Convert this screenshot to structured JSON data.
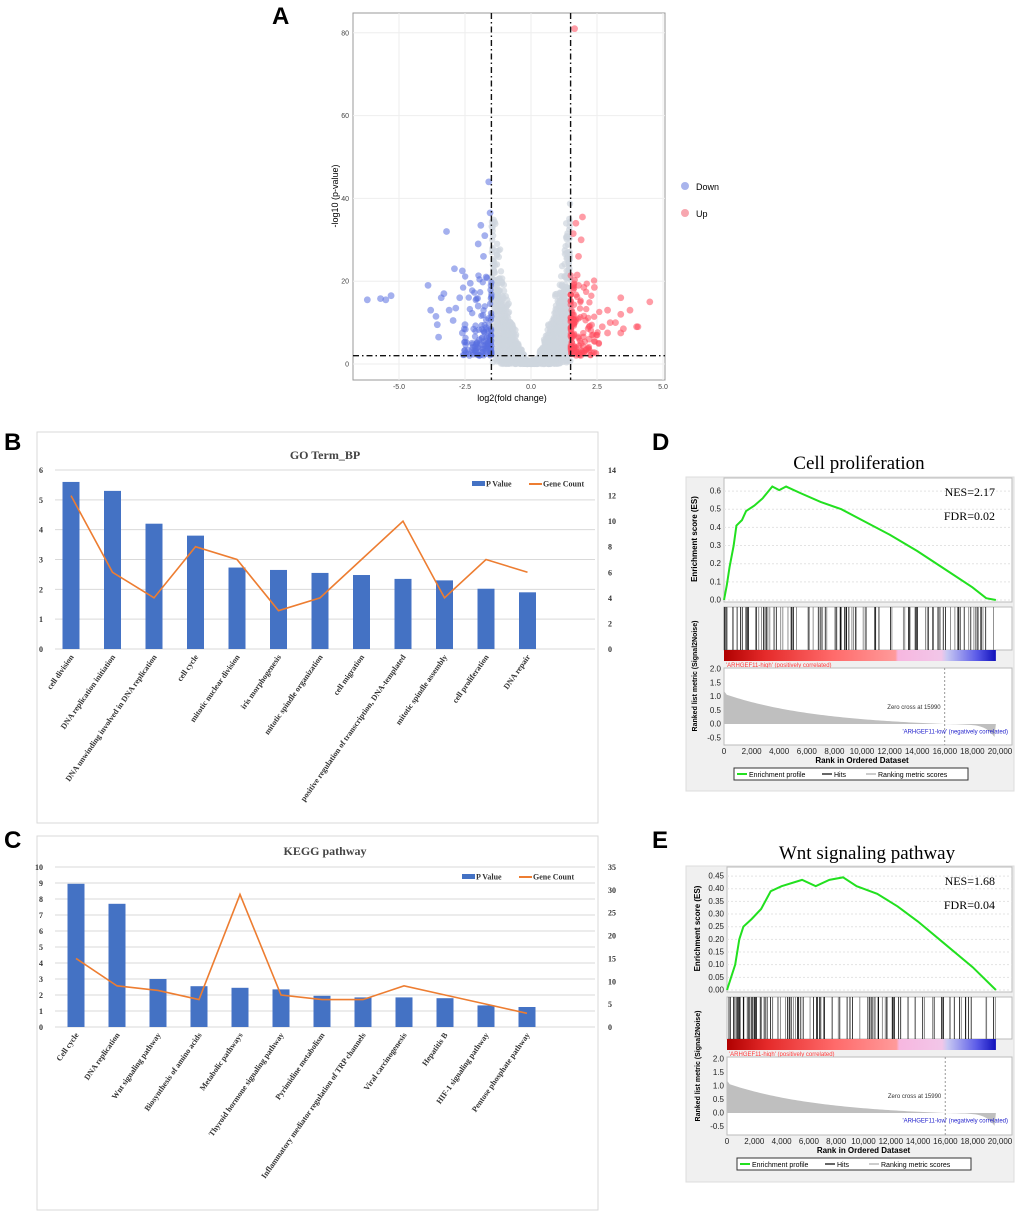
{
  "panels": {
    "A": "A",
    "B": "B",
    "C": "C",
    "D": "D",
    "E": "E"
  },
  "chart_data": [
    {
      "type": "scatter",
      "panel": "A",
      "xlabel": "log2(fold change)",
      "ylabel": "-log10 (p-value)",
      "xlim": [
        -6.5,
        5
      ],
      "ylim": [
        -3,
        85
      ],
      "xticks": [
        "-5.0",
        "-2.5",
        "0.0",
        "2.5",
        "5.0"
      ],
      "yticks": [
        "0",
        "20",
        "40",
        "60",
        "80"
      ],
      "thresholds": {
        "log2fc": [
          -1.5,
          1.5
        ],
        "neg_log10_p": 2
      },
      "grid": true,
      "legend": {
        "position": "right",
        "entries": [
          {
            "name": "Down",
            "color": "#6f82e0"
          },
          {
            "name": "Up",
            "color": "#f26b7a"
          }
        ]
      },
      "colors": {
        "Down": "#5a6fe0",
        "Up": "#ff4a5c",
        "NS": "#cfd6de"
      },
      "series": [
        {
          "name": "Down",
          "points": [
            [
              -6.2,
              15.5
            ],
            [
              -5.7,
              15.8
            ],
            [
              -5.5,
              15.5
            ],
            [
              -5.3,
              16.5
            ],
            [
              -3.9,
              19
            ],
            [
              -3.8,
              13
            ],
            [
              -3.6,
              11.5
            ],
            [
              -3.55,
              9.5
            ],
            [
              -3.5,
              6.5
            ],
            [
              -3.4,
              16
            ],
            [
              -3.3,
              17
            ],
            [
              -3.2,
              32
            ],
            [
              -3.1,
              13
            ],
            [
              -2.95,
              10.5
            ],
            [
              -2.9,
              23
            ],
            [
              -2.85,
              13.5
            ],
            [
              -2.7,
              16
            ],
            [
              -2.6,
              22.5
            ],
            [
              -2.6,
              7.5
            ],
            [
              -2.5,
              9.5
            ],
            [
              -2.3,
              19.5
            ],
            [
              -2.2,
              4
            ],
            [
              -2.1,
              3
            ],
            [
              -2.0,
              29
            ],
            [
              -1.9,
              33.5
            ],
            [
              -1.8,
              26
            ],
            [
              -1.75,
              31
            ],
            [
              -1.6,
              44
            ],
            [
              -1.55,
              36.5
            ],
            [
              -1.7,
              21
            ],
            [
              -2.0,
              14
            ],
            [
              -1.8,
              8
            ],
            [
              -1.6,
              5
            ]
          ]
        },
        {
          "name": "Up",
          "points": [
            [
              1.65,
              81
            ],
            [
              1.6,
              31.5
            ],
            [
              1.7,
              34
            ],
            [
              1.95,
              35.5
            ],
            [
              1.9,
              30
            ],
            [
              1.8,
              26
            ],
            [
              1.75,
              21.5
            ],
            [
              1.8,
              19
            ],
            [
              2.0,
              18.5
            ],
            [
              2.4,
              18.5
            ],
            [
              3.4,
              16
            ],
            [
              4.5,
              15
            ],
            [
              3.75,
              13
            ],
            [
              2.9,
              13
            ],
            [
              3.4,
              12
            ],
            [
              2.7,
              9
            ],
            [
              3.0,
              10
            ],
            [
              3.2,
              10
            ],
            [
              4.0,
              9
            ],
            [
              4.05,
              9
            ],
            [
              3.5,
              8.5
            ],
            [
              3.4,
              7.5
            ],
            [
              2.9,
              7.5
            ],
            [
              2.5,
              7
            ],
            [
              2.2,
              6
            ],
            [
              1.9,
              5
            ],
            [
              1.7,
              4
            ]
          ]
        }
      ]
    },
    {
      "type": "bar",
      "panel": "B",
      "title": "GO Term_BP",
      "categories": [
        "cell division",
        "DNA replication initiation",
        "DNA unwinding involved in DNA replication",
        "cell cycle",
        "mitotic nuclear division",
        "iris morphogenesis",
        "mitotic spindle organization",
        "cell migration",
        "positive regulation of transcription, DNA-templated",
        "mitotic spindle assembly",
        "cell proliferation",
        "DNA repair"
      ],
      "series": [
        {
          "name": "P Value",
          "type": "bar",
          "axis": "left",
          "color": "#4472c4",
          "values": [
            5.6,
            5.3,
            4.2,
            3.8,
            2.73,
            2.65,
            2.55,
            2.48,
            2.35,
            2.3,
            2.02,
            1.9
          ]
        },
        {
          "name": "Gene Count",
          "type": "line",
          "axis": "right",
          "color": "#ed7d31",
          "values": [
            12,
            6,
            4,
            8,
            7,
            3,
            4,
            7,
            10,
            4,
            7,
            6
          ]
        }
      ],
      "ylim": [
        0,
        6
      ],
      "yticks": [
        "0",
        "1",
        "2",
        "3",
        "4",
        "5",
        "6"
      ],
      "y2lim": [
        0,
        14
      ],
      "y2ticks": [
        "0",
        "2",
        "4",
        "6",
        "8",
        "10",
        "12",
        "14"
      ],
      "grid": true,
      "legend": "top-right"
    },
    {
      "type": "bar",
      "panel": "C",
      "title": "KEGG pathway",
      "categories": [
        "Cell cycle",
        "DNA replication",
        "Wnt signaling pathway",
        "Biosynthesis of amino acids",
        "Metabolic pathways",
        "Thyroid hormone signaling pathway",
        "Pyrimidine metabolism",
        "Inflammatory mediator regulation of TRP channels",
        "Viral carcinogenesis",
        "Hepatitis B",
        "HIF-1 signaling pathway",
        "Pentose phosphate pathway"
      ],
      "series": [
        {
          "name": "P Value",
          "type": "bar",
          "axis": "left",
          "color": "#4472c4",
          "values": [
            8.95,
            7.7,
            3.0,
            2.55,
            2.45,
            2.35,
            1.95,
            1.85,
            1.85,
            1.8,
            1.35,
            1.25
          ]
        },
        {
          "name": "Gene Count",
          "type": "line",
          "axis": "right",
          "color": "#ed7d31",
          "values": [
            15,
            9,
            8,
            6,
            29,
            7,
            6,
            6,
            9,
            7,
            5,
            3
          ]
        }
      ],
      "ylim": [
        0,
        10
      ],
      "yticks": [
        "0",
        "1",
        "2",
        "3",
        "4",
        "5",
        "6",
        "7",
        "8",
        "9",
        "10"
      ],
      "y2lim": [
        0,
        35
      ],
      "y2ticks": [
        "0",
        "5",
        "10",
        "15",
        "20",
        "25",
        "30",
        "35"
      ],
      "grid": true,
      "legend": "top-right"
    },
    {
      "type": "line",
      "panel": "D",
      "title": "Cell proliferation",
      "nes": "NES=2.17",
      "fdr": "FDR=0.02",
      "ylabel": "Enrichment score (ES)",
      "ylabel2": "Ranked list metric (Signal2Noise)",
      "xlabel": "Rank in Ordered Dataset",
      "xlim": [
        0,
        20000
      ],
      "xticks": [
        "0",
        "2,000",
        "4,000",
        "6,000",
        "8,000",
        "10,000",
        "12,000",
        "14,000",
        "16,000",
        "18,000",
        "20,000"
      ],
      "ylim": [
        0,
        0.65
      ],
      "yticks": [
        "0.0",
        "0.1",
        "0.2",
        "0.3",
        "0.4",
        "0.5",
        "0.6"
      ],
      "metric_ticks": [
        "2.0",
        "1.5",
        "1.0",
        "0.5",
        "0.0",
        "-0.5"
      ],
      "es_curve": [
        [
          0,
          0
        ],
        [
          200,
          0.08
        ],
        [
          400,
          0.18
        ],
        [
          700,
          0.3
        ],
        [
          900,
          0.41
        ],
        [
          1300,
          0.44
        ],
        [
          1600,
          0.49
        ],
        [
          2200,
          0.52
        ],
        [
          2800,
          0.56
        ],
        [
          3500,
          0.625
        ],
        [
          4000,
          0.605
        ],
        [
          4500,
          0.625
        ],
        [
          5500,
          0.59
        ],
        [
          7000,
          0.54
        ],
        [
          8500,
          0.5
        ],
        [
          10000,
          0.44
        ],
        [
          12000,
          0.36
        ],
        [
          14000,
          0.27
        ],
        [
          16000,
          0.17
        ],
        [
          18000,
          0.07
        ],
        [
          19000,
          0.01
        ],
        [
          19700,
          0.0
        ]
      ],
      "high_label": "'ARHGEF11-high' (positively correlated)",
      "low_label": "'ARHGEF11-low' (negatively correlated)",
      "zero_cross": "Zero cross at 15990",
      "legend": [
        "Enrichment profile",
        "Hits",
        "Ranking metric scores"
      ],
      "colors": {
        "es": "#22e01f",
        "high": "#ff3a3a",
        "low": "#2222cc"
      }
    },
    {
      "type": "line",
      "panel": "E",
      "title": "Wnt signaling pathway",
      "nes": "NES=1.68",
      "fdr": "FDR=0.04",
      "ylabel": "Enrichment score (ES)",
      "ylabel2": "Ranked list metric (Signal2Noise)",
      "xlabel": "Rank in Ordered Dataset",
      "xlim": [
        0,
        20000
      ],
      "xticks": [
        "0",
        "2,000",
        "4,000",
        "6,000",
        "8,000",
        "10,000",
        "12,000",
        "14,000",
        "16,000",
        "18,000",
        "20,000"
      ],
      "ylim": [
        0,
        0.47
      ],
      "yticks": [
        "0.00",
        "0.05",
        "0.10",
        "0.15",
        "0.20",
        "0.25",
        "0.30",
        "0.35",
        "0.40",
        "0.45"
      ],
      "metric_ticks": [
        "2.0",
        "1.5",
        "1.0",
        "0.5",
        "0.0",
        "-0.5"
      ],
      "es_curve": [
        [
          0,
          0
        ],
        [
          300,
          0.05
        ],
        [
          600,
          0.1
        ],
        [
          900,
          0.2
        ],
        [
          1200,
          0.25
        ],
        [
          1800,
          0.28
        ],
        [
          2500,
          0.32
        ],
        [
          3200,
          0.39
        ],
        [
          4000,
          0.41
        ],
        [
          5500,
          0.435
        ],
        [
          6500,
          0.41
        ],
        [
          7500,
          0.435
        ],
        [
          8500,
          0.445
        ],
        [
          9500,
          0.41
        ],
        [
          11000,
          0.38
        ],
        [
          12500,
          0.33
        ],
        [
          14000,
          0.27
        ],
        [
          16000,
          0.18
        ],
        [
          18000,
          0.09
        ],
        [
          19700,
          0
        ]
      ],
      "high_label": "'ARHGEF11-high' (positively correlated)",
      "low_label": "'ARHGEF11-low' (negatively correlated)",
      "zero_cross": "Zero cross at 15990",
      "legend": [
        "Enrichment profile",
        "Hits",
        "Ranking metric scores"
      ],
      "colors": {
        "es": "#22e01f",
        "high": "#ff3a3a",
        "low": "#2222cc"
      }
    }
  ]
}
